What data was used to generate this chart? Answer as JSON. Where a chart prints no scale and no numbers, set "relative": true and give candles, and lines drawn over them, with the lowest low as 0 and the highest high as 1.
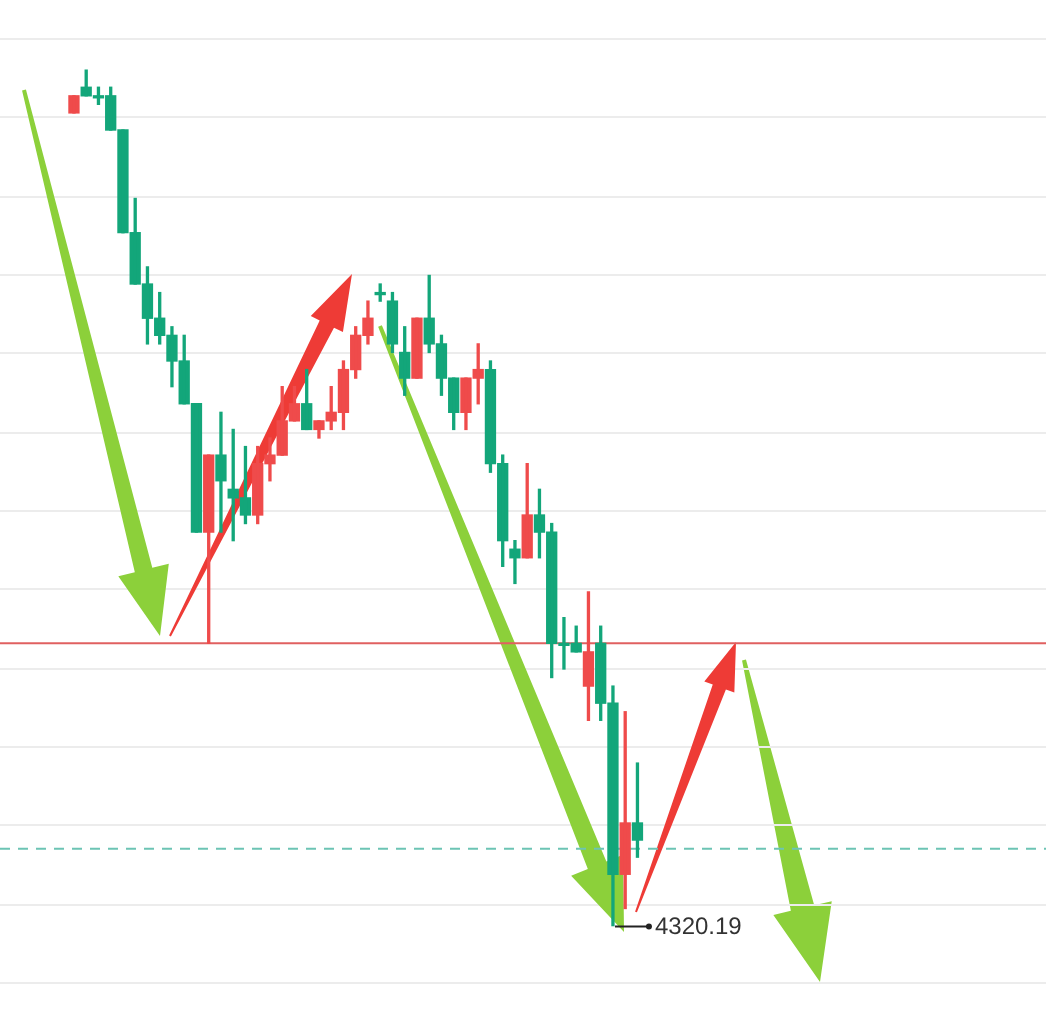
{
  "chart_data": {
    "type": "candlestick",
    "relative": true,
    "grid": "y",
    "tick_labels": false,
    "categories": [
      null,
      null,
      null,
      null,
      null,
      null,
      null,
      null,
      null,
      null,
      null,
      null,
      null,
      null,
      null,
      null,
      null,
      null,
      null,
      null,
      null,
      null,
      null,
      null,
      null,
      null,
      null,
      null,
      null,
      null,
      null,
      null,
      null,
      null,
      null,
      null,
      null,
      null,
      null,
      null,
      null,
      null,
      null,
      null,
      null,
      null,
      null
    ],
    "ohlc": [
      [
        0.95,
        0.97,
        0.95,
        0.97
      ],
      [
        0.98,
        1,
        0.97,
        0.97
      ],
      [
        0.97,
        0.98,
        0.96,
        0.97
      ],
      [
        0.97,
        0.98,
        0.93,
        0.93
      ],
      [
        0.93,
        0.93,
        0.81,
        0.81
      ],
      [
        0.81,
        0.85,
        0.75,
        0.75
      ],
      [
        0.75,
        0.77,
        0.68,
        0.71
      ],
      [
        0.71,
        0.74,
        0.68,
        0.69
      ],
      [
        0.69,
        0.7,
        0.63,
        0.66
      ],
      [
        0.66,
        0.69,
        0.61,
        0.61
      ],
      [
        0.61,
        0.61,
        0.46,
        0.46
      ],
      [
        0.46,
        0.55,
        0.33,
        0.55
      ],
      [
        0.55,
        0.6,
        0.46,
        0.52
      ],
      [
        0.51,
        0.58,
        0.45,
        0.5
      ],
      [
        0.5,
        0.56,
        0.47,
        0.48
      ],
      [
        0.48,
        0.56,
        0.47,
        0.54
      ],
      [
        0.54,
        0.57,
        0.52,
        0.55
      ],
      [
        0.55,
        0.63,
        0.55,
        0.59
      ],
      [
        0.59,
        0.63,
        0.59,
        0.61
      ],
      [
        0.61,
        0.65,
        0.58,
        0.58
      ],
      [
        0.58,
        0.59,
        0.57,
        0.59
      ],
      [
        0.59,
        0.63,
        0.58,
        0.6
      ],
      [
        0.6,
        0.66,
        0.58,
        0.65
      ],
      [
        0.65,
        0.7,
        0.64,
        0.69
      ],
      [
        0.69,
        0.73,
        0.68,
        0.71
      ],
      [
        0.74,
        0.75,
        0.73,
        0.74
      ],
      [
        0.73,
        0.74,
        0.67,
        0.68
      ],
      [
        0.67,
        0.7,
        0.62,
        0.64
      ],
      [
        0.64,
        0.71,
        0.64,
        0.71
      ],
      [
        0.71,
        0.76,
        0.67,
        0.68
      ],
      [
        0.68,
        0.69,
        0.62,
        0.64
      ],
      [
        0.64,
        0.64,
        0.58,
        0.6
      ],
      [
        0.6,
        0.64,
        0.58,
        0.64
      ],
      [
        0.64,
        0.68,
        0.61,
        0.65
      ],
      [
        0.65,
        0.66,
        0.53,
        0.54
      ],
      [
        0.54,
        0.55,
        0.42,
        0.45
      ],
      [
        0.44,
        0.45,
        0.4,
        0.43
      ],
      [
        0.43,
        0.54,
        0.43,
        0.48
      ],
      [
        0.48,
        0.51,
        0.43,
        0.46
      ],
      [
        0.46,
        0.47,
        0.29,
        0.33
      ],
      [
        0.33,
        0.36,
        0.3,
        0.33
      ],
      [
        0.33,
        0.35,
        0.32,
        0.32
      ],
      [
        0.28,
        0.39,
        0.24,
        0.32
      ],
      [
        0.33,
        0.35,
        0.24,
        0.26
      ],
      [
        0.26,
        0.28,
        0,
        0.06
      ],
      [
        0.06,
        0.25,
        0.02,
        0.12
      ],
      [
        0.12,
        0.19,
        0.08,
        0.1
      ]
    ],
    "colors": [
      "#ef4b4b",
      "#13a67a",
      "#13a67a",
      "#13a67a",
      "#13a67a",
      "#13a67a",
      "#13a67a",
      "#13a67a",
      "#13a67a",
      "#13a67a",
      "#13a67a",
      "#ef4b4b",
      "#13a67a",
      "#13a67a",
      "#13a67a",
      "#ef4b4b",
      "#ef4b4b",
      "#ef4b4b",
      "#ef4b4b",
      "#13a67a",
      "#ef4b4b",
      "#ef4b4b",
      "#ef4b4b",
      "#ef4b4b",
      "#ef4b4b",
      "#13a67a",
      "#13a67a",
      "#13a67a",
      "#ef4b4b",
      "#13a67a",
      "#13a67a",
      "#13a67a",
      "#ef4b4b",
      "#ef4b4b",
      "#13a67a",
      "#13a67a",
      "#13a67a",
      "#ef4b4b",
      "#13a67a",
      "#13a67a",
      "#13a67a",
      "#13a67a",
      "#ef4b4b",
      "#13a67a",
      "#13a67a",
      "#ef4b4b",
      "#13a67a"
    ],
    "ref_lines": [
      {
        "axis": "y",
        "value": 0.33,
        "color": "#e06060"
      },
      {
        "axis": "y",
        "value": 0.09,
        "color": "#6cc4b4",
        "line_style": "dashed"
      }
    ],
    "annotations": [
      "4320.19"
    ]
  }
}
